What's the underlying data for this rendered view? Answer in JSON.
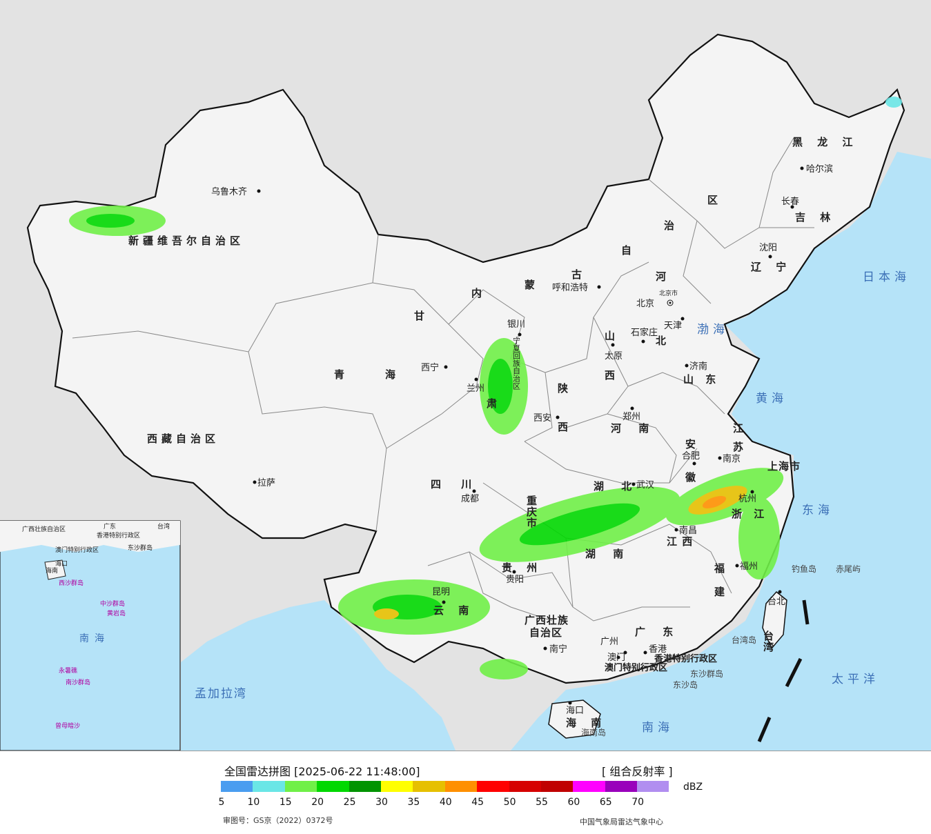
{
  "legend": {
    "title": "全国雷达拼图 [2025-06-22 11:48:00]",
    "product": "[ 组合反射率 ]",
    "unit": "dBZ",
    "ticks": [
      "5",
      "10",
      "15",
      "20",
      "25",
      "30",
      "35",
      "40",
      "45",
      "50",
      "55",
      "60",
      "65",
      "70"
    ],
    "colors": [
      "#4a9df0",
      "#6ae6e6",
      "#70f048",
      "#00d800",
      "#009400",
      "#ffff00",
      "#e6c000",
      "#ff9000",
      "#ff0000",
      "#d60000",
      "#c00000",
      "#ff00ff",
      "#9900bb",
      "#b18ef0"
    ],
    "approval_number": "审图号：GS京（2022）0372号",
    "agency": "中国气象局雷达气象中心"
  },
  "map": {
    "colors": {
      "land": "#f4f4f4",
      "sea": "#b5e3f8",
      "foreign": "#e3e3e3",
      "border": "#111111",
      "province_border": "#888888"
    },
    "provinces": [
      {
        "name": "新疆维吾尔自治区",
        "key": "xinjiang"
      },
      {
        "name": "西藏自治区",
        "key": "xizang"
      },
      {
        "name": "青",
        "key": "qing"
      },
      {
        "name": "海",
        "key": "hai"
      },
      {
        "name": "甘",
        "key": "gan"
      },
      {
        "name": "肃",
        "key": "su"
      },
      {
        "name": "内",
        "key": "nei"
      },
      {
        "name": "蒙",
        "key": "meng"
      },
      {
        "name": "古",
        "key": "gu"
      },
      {
        "name": "自",
        "key": "zi"
      },
      {
        "name": "治",
        "key": "zhi"
      },
      {
        "name": "区",
        "key": "qu"
      },
      {
        "name": "黑 龙 江",
        "key": "heilongjiang"
      },
      {
        "name": "吉 林",
        "key": "jilin"
      },
      {
        "name": "辽 宁",
        "key": "liaoning"
      },
      {
        "name": "河",
        "key": "he"
      },
      {
        "name": "北",
        "key": "bei"
      },
      {
        "name": "山",
        "key": "shan"
      },
      {
        "name": "西",
        "key": "xi"
      },
      {
        "name": "山 东",
        "key": "shandong"
      },
      {
        "name": "陕",
        "key": "shaan"
      },
      {
        "name": "西",
        "key": "shaanxi"
      },
      {
        "name": "河 南",
        "key": "henan"
      },
      {
        "name": "四 川",
        "key": "sichuan"
      },
      {
        "name": "湖 北",
        "key": "hubei"
      },
      {
        "name": "安",
        "key": "an"
      },
      {
        "name": "徽",
        "key": "hui"
      },
      {
        "name": "江",
        "key": "jiang"
      },
      {
        "name": "苏",
        "key": "su2"
      },
      {
        "name": "浙 江",
        "key": "zhejiang"
      },
      {
        "name": "湖 南",
        "key": "hunan"
      },
      {
        "name": "江 西",
        "key": "jiangxi"
      },
      {
        "name": "福",
        "key": "fu"
      },
      {
        "name": "建",
        "key": "jian"
      },
      {
        "name": "贵 州",
        "key": "guizhou"
      },
      {
        "name": "云 南",
        "key": "yunnan"
      },
      {
        "name": "广西壮族",
        "key": "guangxi1"
      },
      {
        "name": "自治区",
        "key": "guangxi2"
      },
      {
        "name": "广 东",
        "key": "guangdong"
      },
      {
        "name": "海 南",
        "key": "hainan"
      },
      {
        "name": "重庆市",
        "key": "chongqing"
      },
      {
        "name": "上海市",
        "key": "shanghai"
      },
      {
        "name": "宁夏回族自治区",
        "key": "ningxia"
      },
      {
        "name": "台湾",
        "key": "taiwan"
      }
    ],
    "cities": [
      {
        "name": "乌鲁木齐",
        "key": "urumqi"
      },
      {
        "name": "拉萨",
        "key": "lasa"
      },
      {
        "name": "西宁",
        "key": "xining"
      },
      {
        "name": "兰州",
        "key": "lanzhou"
      },
      {
        "name": "银川",
        "key": "yinchuan"
      },
      {
        "name": "呼和浩特",
        "key": "huhehaote"
      },
      {
        "name": "北京",
        "key": "beijing"
      },
      {
        "name": "天津",
        "key": "tianjin"
      },
      {
        "name": "石家庄",
        "key": "shijiazhuang"
      },
      {
        "name": "太原",
        "key": "taiyuan"
      },
      {
        "name": "济南",
        "key": "jinan"
      },
      {
        "name": "郑州",
        "key": "zhengzhou"
      },
      {
        "name": "西安",
        "key": "xian"
      },
      {
        "name": "成都",
        "key": "chengdu"
      },
      {
        "name": "武汉",
        "key": "wuhan"
      },
      {
        "name": "合肥",
        "key": "hefei"
      },
      {
        "name": "南京",
        "key": "nanjing"
      },
      {
        "name": "杭州",
        "key": "hangzhou"
      },
      {
        "name": "南昌",
        "key": "nanchang"
      },
      {
        "name": "福州",
        "key": "fuzhou"
      },
      {
        "name": "台北",
        "key": "taibei"
      },
      {
        "name": "贵阳",
        "key": "guiyang"
      },
      {
        "name": "昆明",
        "key": "kunming"
      },
      {
        "name": "南宁",
        "key": "nanning"
      },
      {
        "name": "广州",
        "key": "guangzhou"
      },
      {
        "name": "海口",
        "key": "haikou"
      },
      {
        "name": "哈尔滨",
        "key": "haerbin"
      },
      {
        "name": "长春",
        "key": "changchun"
      },
      {
        "name": "沈阳",
        "key": "shenyang"
      },
      {
        "name": "香港",
        "key": "xianggang"
      },
      {
        "name": "澳门",
        "key": "aomen"
      }
    ],
    "labels": {
      "hk_sar": "香港特别行政区",
      "macau_sar": "澳门特别行政区",
      "beijing_city": "北京市",
      "diaoyu": "钓鱼岛",
      "chiwei": "赤尾屿",
      "dongsha_islands": "东沙群岛",
      "dongsha_island": "东沙岛",
      "hainan_island": "海南岛",
      "taiwan_island": "台湾岛",
      "bohai": "渤海",
      "huanghai": "黄海",
      "donghai": "东海",
      "nanhai": "南海",
      "taipingyang": "太平洋",
      "riben_hai": "日本海",
      "mengjiala_wan": "孟加拉湾"
    },
    "inset": {
      "labels": [
        "广西壮族自治区",
        "广东",
        "台湾",
        "香港特别行政区",
        "澳门特别行政区",
        "东沙群岛",
        "海南",
        "海口",
        "西沙群岛",
        "中沙群岛",
        "黄岩岛",
        "南海",
        "永暑礁",
        "南沙群岛",
        "曾母暗沙"
      ]
    }
  }
}
